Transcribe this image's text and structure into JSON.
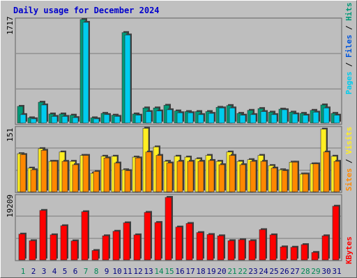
{
  "title": "Daily usage for December 2024",
  "colors": {
    "hits": "#009977",
    "files": "#00ccee",
    "sites": "#ff8800",
    "visits": "#ffee22",
    "kbytes": "#ff0000",
    "weekend": "#008855",
    "weekday": "#000080"
  },
  "chart_data": [
    {
      "type": "bar",
      "panel": "hits-files",
      "ymax_label": "1717",
      "ylim": [
        0,
        1717
      ],
      "right_labels": [
        "Pages",
        "Files",
        "Hits"
      ],
      "categories": [
        "1",
        "2",
        "3",
        "4",
        "5",
        "6",
        "7",
        "8",
        "9",
        "10",
        "11",
        "12",
        "13",
        "14",
        "15",
        "16",
        "17",
        "18",
        "19",
        "20",
        "21",
        "22",
        "23",
        "24",
        "25",
        "26",
        "27",
        "28",
        "29",
        "30",
        "31"
      ],
      "series": [
        {
          "name": "Hits",
          "values": [
            276,
            86,
            345,
            150,
            150,
            130,
            1717,
            86,
            160,
            130,
            1500,
            150,
            250,
            250,
            294,
            200,
            190,
            190,
            190,
            260,
            290,
            160,
            210,
            240,
            180,
            230,
            180,
            160,
            210,
            300,
            160
          ]
        },
        {
          "name": "Files",
          "values": [
            140,
            70,
            300,
            110,
            110,
            90,
            1670,
            70,
            140,
            110,
            1460,
            130,
            190,
            200,
            220,
            170,
            170,
            140,
            160,
            250,
            250,
            130,
            140,
            190,
            140,
            220,
            150,
            130,
            180,
            250,
            130
          ]
        }
      ]
    },
    {
      "type": "bar",
      "panel": "sites-visits",
      "ymax_label": "151",
      "ylim": [
        0,
        151
      ],
      "right_labels": [
        "Sites",
        "Visits"
      ],
      "categories": [
        "1",
        "2",
        "3",
        "4",
        "5",
        "6",
        "7",
        "8",
        "9",
        "10",
        "11",
        "12",
        "13",
        "14",
        "15",
        "16",
        "17",
        "18",
        "19",
        "20",
        "21",
        "22",
        "23",
        "24",
        "25",
        "26",
        "27",
        "28",
        "29",
        "30",
        "31"
      ],
      "series": [
        {
          "name": "Visits",
          "values": [
            90,
            56,
            102,
            72,
            94,
            72,
            86,
            44,
            84,
            84,
            52,
            82,
            150,
            106,
            72,
            84,
            82,
            78,
            86,
            72,
            94,
            72,
            76,
            86,
            62,
            52,
            70,
            42,
            66,
            148,
            84
          ]
        },
        {
          "name": "Sites",
          "values": [
            88,
            52,
            98,
            72,
            72,
            64,
            86,
            48,
            80,
            68,
            50,
            80,
            94,
            86,
            68,
            72,
            72,
            72,
            74,
            64,
            86,
            64,
            72,
            72,
            56,
            50,
            70,
            42,
            66,
            94,
            72
          ]
        }
      ]
    },
    {
      "type": "bar",
      "panel": "kbytes",
      "ymax_label": "19209",
      "ylim": [
        0,
        19209
      ],
      "right_labels": [
        "KBytes"
      ],
      "categories": [
        "1",
        "2",
        "3",
        "4",
        "5",
        "6",
        "7",
        "8",
        "9",
        "10",
        "11",
        "12",
        "13",
        "14",
        "15",
        "16",
        "17",
        "18",
        "19",
        "20",
        "21",
        "22",
        "23",
        "24",
        "25",
        "26",
        "27",
        "28",
        "29",
        "30",
        "31"
      ],
      "series": [
        {
          "name": "KBytes",
          "values": [
            7930,
            5890,
            15200,
            7710,
            10500,
            5840,
            14800,
            2890,
            7400,
            8800,
            11400,
            7700,
            14600,
            11500,
            19209,
            10100,
            11200,
            8400,
            7800,
            7400,
            5900,
            6200,
            5900,
            9300,
            7700,
            4000,
            3900,
            4700,
            2300,
            7400,
            16500
          ]
        }
      ]
    }
  ],
  "day_labels": [
    {
      "label": "1",
      "weekend": true
    },
    {
      "label": "2",
      "weekend": false
    },
    {
      "label": "3",
      "weekend": false
    },
    {
      "label": "4",
      "weekend": false
    },
    {
      "label": "5",
      "weekend": false
    },
    {
      "label": "6",
      "weekend": false
    },
    {
      "label": "7",
      "weekend": true
    },
    {
      "label": "8",
      "weekend": true
    },
    {
      "label": "9",
      "weekend": false
    },
    {
      "label": "10",
      "weekend": false
    },
    {
      "label": "11",
      "weekend": false
    },
    {
      "label": "12",
      "weekend": false
    },
    {
      "label": "13",
      "weekend": false
    },
    {
      "label": "14",
      "weekend": true
    },
    {
      "label": "15",
      "weekend": true
    },
    {
      "label": "16",
      "weekend": false
    },
    {
      "label": "17",
      "weekend": false
    },
    {
      "label": "18",
      "weekend": false
    },
    {
      "label": "19",
      "weekend": false
    },
    {
      "label": "20",
      "weekend": false
    },
    {
      "label": "21",
      "weekend": true
    },
    {
      "label": "22",
      "weekend": true
    },
    {
      "label": "23",
      "weekend": false
    },
    {
      "label": "24",
      "weekend": false
    },
    {
      "label": "25",
      "weekend": false
    },
    {
      "label": "26",
      "weekend": false
    },
    {
      "label": "27",
      "weekend": false
    },
    {
      "label": "28",
      "weekend": true
    },
    {
      "label": "29",
      "weekend": true
    },
    {
      "label": "30",
      "weekend": false
    },
    {
      "label": "31",
      "weekend": false
    }
  ]
}
